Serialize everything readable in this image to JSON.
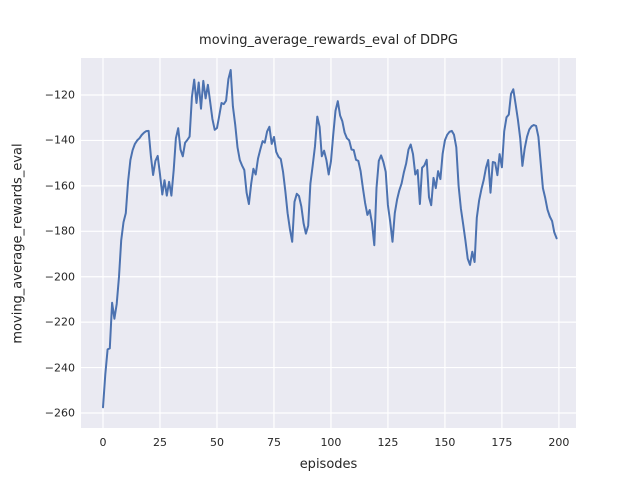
{
  "figure": {
    "title": "moving_average_rewards_eval of DDPG",
    "xlabel": "episodes",
    "ylabel": "moving_average_rewards_eval"
  },
  "colors": {
    "figure_background": "#ffffff",
    "axes_background": "#eaeaf2",
    "gridline": "#ffffff",
    "line": "#4c72b0",
    "text": "#262626"
  },
  "chart_data": {
    "type": "line",
    "title": "moving_average_rewards_eval of DDPG",
    "xlabel": "episodes",
    "ylabel": "moving_average_rewards_eval",
    "grid": true,
    "legend": null,
    "xlim": [
      -9.65,
      207.5
    ],
    "ylim": [
      -266.6,
      -103.7
    ],
    "x_ticks": [
      0,
      25,
      50,
      75,
      100,
      125,
      150,
      175,
      200
    ],
    "x_tick_labels": [
      "0",
      "25",
      "50",
      "75",
      "100",
      "125",
      "150",
      "175",
      "200"
    ],
    "y_ticks": [
      -120,
      -140,
      -160,
      -180,
      -200,
      -220,
      -240,
      -260
    ],
    "y_tick_labels": [
      "−120",
      "−140",
      "−160",
      "−180",
      "−200",
      "−220",
      "−240",
      "−260"
    ],
    "series": [
      {
        "name": "moving_average_rewards_eval",
        "color": "#4c72b0",
        "x0": 0,
        "dx": 1,
        "values": [
          -257.5,
          -243,
          -232,
          -231.5,
          -211.5,
          -218.5,
          -212,
          -200,
          -184,
          -176,
          -172,
          -158,
          -148.6,
          -144.3,
          -141.5,
          -140,
          -139,
          -137.6,
          -136.6,
          -135.9,
          -135.8,
          -147,
          -155.2,
          -149,
          -146.8,
          -155,
          -163.8,
          -157.5,
          -164.3,
          -158.2,
          -164.3,
          -153,
          -139,
          -134.6,
          -144,
          -147,
          -141,
          -139.8,
          -138.3,
          -121,
          -113.2,
          -123.5,
          -114.5,
          -126,
          -113.8,
          -121.5,
          -115.5,
          -122.8,
          -130.5,
          -135.3,
          -134.5,
          -129,
          -123.5,
          -124,
          -122.5,
          -113,
          -109,
          -125,
          -133,
          -143,
          -148.6,
          -151,
          -153,
          -163,
          -168,
          -159,
          -152.5,
          -155,
          -148,
          -144,
          -140.3,
          -141,
          -136,
          -134,
          -141.5,
          -138.5,
          -145,
          -147.2,
          -148.2,
          -154,
          -162.6,
          -172,
          -179,
          -184.6,
          -167,
          -163.5,
          -164.5,
          -169,
          -176.5,
          -181,
          -177.5,
          -159,
          -151,
          -142.5,
          -129.5,
          -134,
          -147,
          -144.5,
          -148.6,
          -155,
          -149,
          -137.6,
          -127,
          -122.7,
          -129,
          -131.5,
          -136.5,
          -139,
          -140,
          -144,
          -144.2,
          -148.5,
          -149,
          -153.5,
          -161,
          -167.5,
          -172.8,
          -170.6,
          -176.5,
          -186.1,
          -161,
          -149,
          -146.6,
          -149.5,
          -153.8,
          -168.4,
          -175.8,
          -184.6,
          -172,
          -166,
          -162,
          -158.9,
          -154,
          -150,
          -144,
          -141.8,
          -146,
          -155,
          -153,
          -168,
          -152,
          -151,
          -148.5,
          -165,
          -168.5,
          -156.5,
          -161,
          -153.5,
          -157,
          -146,
          -140,
          -137.5,
          -136.2,
          -135.8,
          -137.5,
          -143,
          -160,
          -170,
          -177,
          -184,
          -192,
          -194.8,
          -189,
          -193.5,
          -174,
          -166.5,
          -161.5,
          -157.4,
          -152,
          -148.6,
          -163,
          -149.5,
          -149.8,
          -155.3,
          -146,
          -151.8,
          -136,
          -129.8,
          -128.6,
          -119.5,
          -117.5,
          -124,
          -130.8,
          -139,
          -151.2,
          -143.5,
          -138.4,
          -135.2,
          -133.8,
          -133.2,
          -133.6,
          -138.4,
          -150,
          -161,
          -165.3,
          -170.5,
          -173.5,
          -175.5,
          -180.5,
          -183.1
        ]
      }
    ]
  }
}
